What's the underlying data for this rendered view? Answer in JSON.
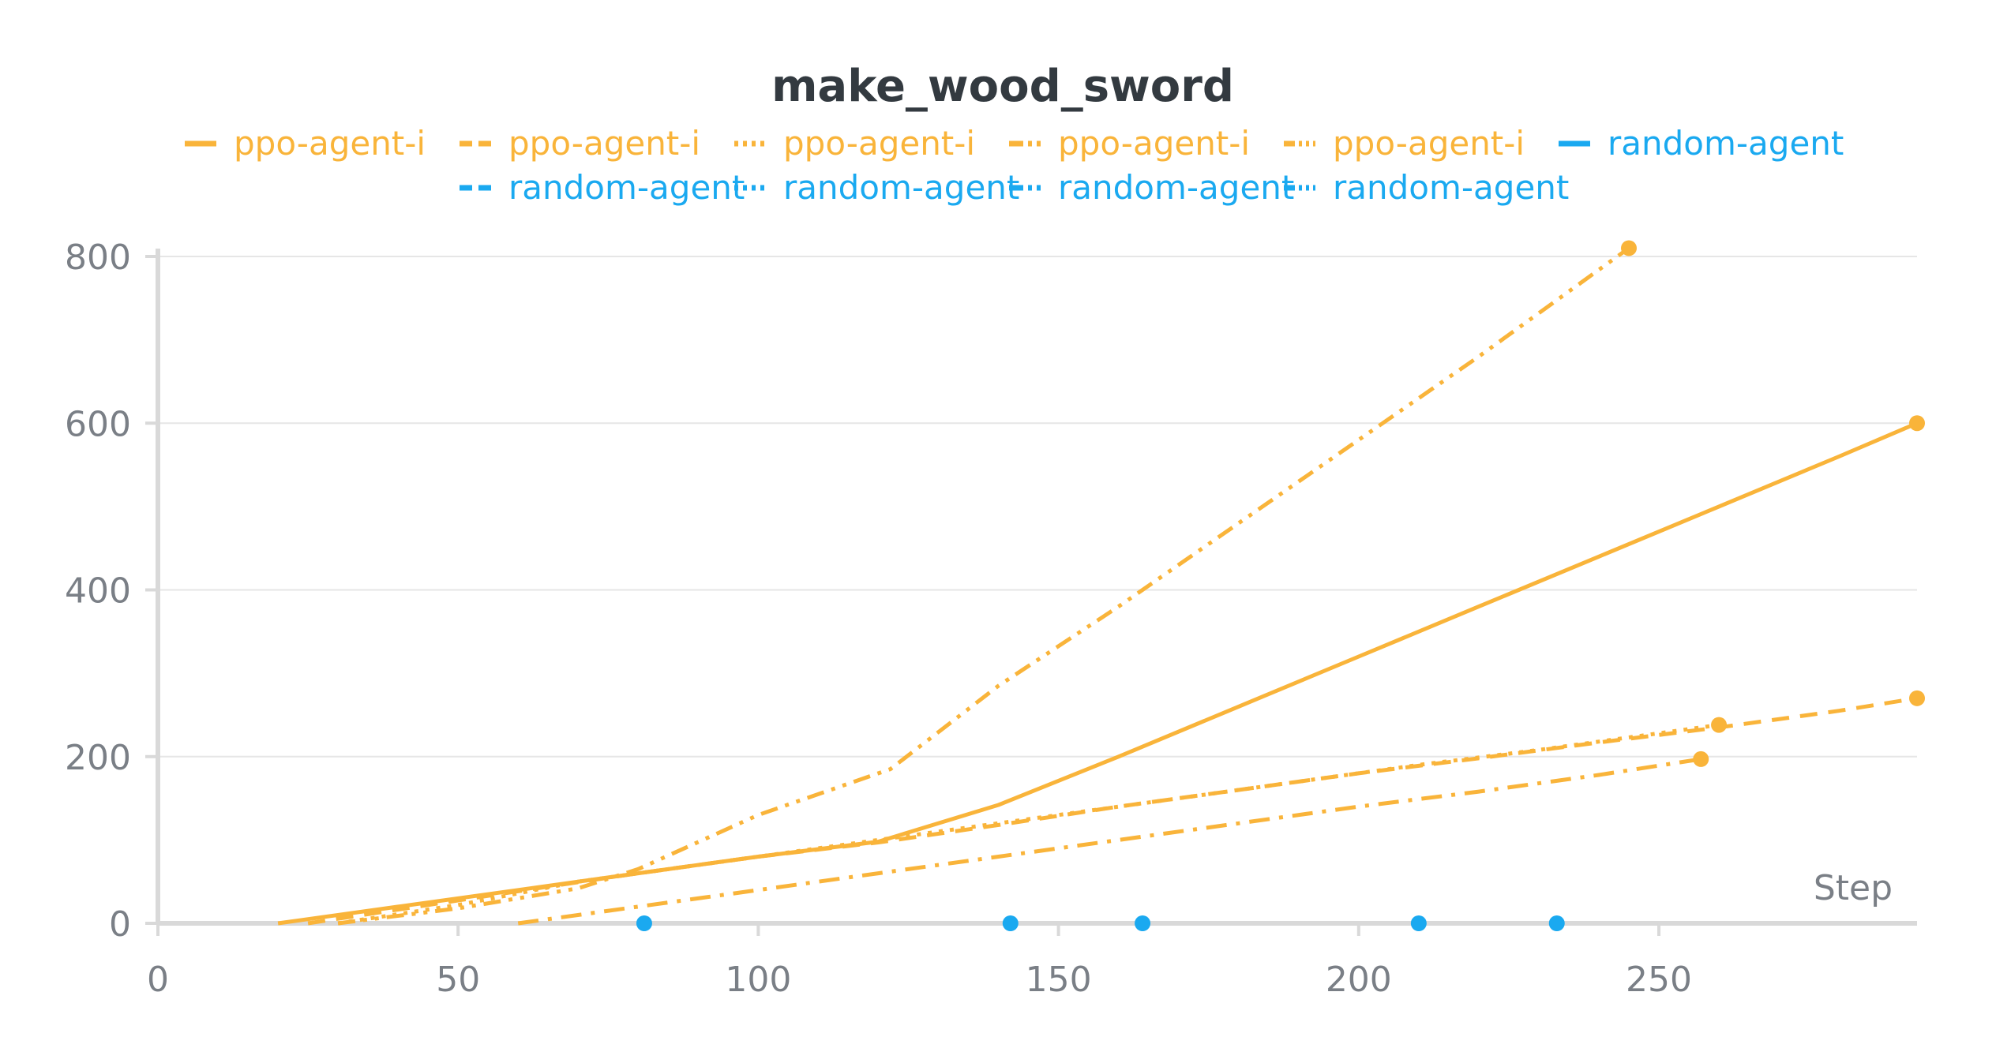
{
  "chart_data": {
    "type": "line",
    "title": "make_wood_sword",
    "xlabel": "Step",
    "ylabel": "",
    "xlim": [
      0,
      293
    ],
    "ylim": [
      0,
      800
    ],
    "x_ticks": [
      0,
      50,
      100,
      150,
      200,
      250
    ],
    "y_ticks": [
      0,
      200,
      400,
      600,
      800
    ],
    "grid": true,
    "legend_position": "top",
    "colors": {
      "ppo": "#f9b43a",
      "random": "#1aa9f0",
      "grid": "#e6e6e6",
      "axis": "#d9d9d9",
      "title": "#333a40",
      "tick": "#7a7f86"
    },
    "series": [
      {
        "name": "ppo-agent-i",
        "color": "#f9b43a",
        "dash": "solid",
        "x": [
          20,
          40,
          60,
          80,
          100,
          120,
          140,
          160,
          180,
          200,
          220,
          240,
          260,
          280,
          293
        ],
        "y": [
          0,
          20,
          40,
          60,
          80,
          98,
          142,
          200,
          260,
          320,
          380,
          440,
          500,
          560,
          600
        ],
        "end_marker": true
      },
      {
        "name": "ppo-agent-i",
        "color": "#f9b43a",
        "dash": "dashed",
        "x": [
          25,
          45,
          65,
          80,
          100,
          120,
          140,
          160,
          180,
          200,
          220,
          240,
          260,
          280,
          293
        ],
        "y": [
          0,
          22,
          44,
          60,
          80,
          97,
          118,
          140,
          160,
          180,
          198,
          217,
          235,
          255,
          270
        ],
        "end_marker": true
      },
      {
        "name": "ppo-agent-i",
        "color": "#f9b43a",
        "dash": "dotted",
        "x": [
          30,
          50,
          70,
          90,
          110,
          130,
          150,
          170,
          190,
          210,
          230,
          250,
          260
        ],
        "y": [
          0,
          22,
          50,
          70,
          90,
          110,
          130,
          150,
          170,
          190,
          208,
          228,
          238
        ],
        "end_marker": true
      },
      {
        "name": "ppo-agent-i",
        "color": "#f9b43a",
        "dash": "dashdot",
        "x": [
          60,
          80,
          100,
          120,
          140,
          160,
          180,
          200,
          220,
          240,
          257
        ],
        "y": [
          0,
          20,
          40,
          60,
          80,
          100,
          120,
          140,
          158,
          178,
          197
        ],
        "end_marker": true
      },
      {
        "name": "ppo-agent-i",
        "color": "#f9b43a",
        "dash": "dashdotdot",
        "x": [
          30,
          50,
          70,
          80,
          100,
          122,
          140,
          160,
          180,
          200,
          220,
          245
        ],
        "y": [
          0,
          18,
          42,
          65,
          130,
          185,
          285,
          380,
          480,
          580,
          680,
          810
        ],
        "end_marker": true
      },
      {
        "name": "random-agent",
        "color": "#1aa9f0",
        "dash": "solid",
        "x": [
          210
        ],
        "y": [
          0
        ],
        "end_marker": true
      },
      {
        "name": "random-agent",
        "color": "#1aa9f0",
        "dash": "dashed",
        "x": [
          81
        ],
        "y": [
          0
        ],
        "end_marker": true
      },
      {
        "name": "random-agent",
        "color": "#1aa9f0",
        "dash": "dotted",
        "x": [
          142
        ],
        "y": [
          0
        ],
        "end_marker": true
      },
      {
        "name": "random-agent",
        "color": "#1aa9f0",
        "dash": "dashdot",
        "x": [
          164
        ],
        "y": [
          0
        ],
        "end_marker": true
      },
      {
        "name": "random-agent",
        "color": "#1aa9f0",
        "dash": "dashdotdot",
        "x": [
          233
        ],
        "y": [
          0
        ],
        "end_marker": true
      }
    ]
  }
}
